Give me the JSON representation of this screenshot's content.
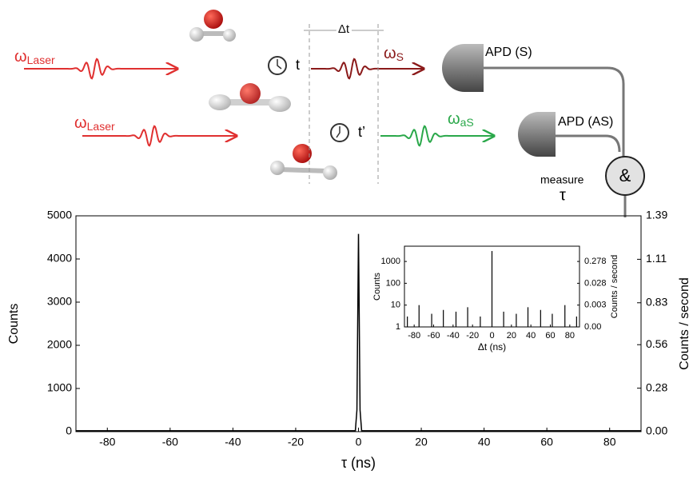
{
  "diagram": {
    "laser_1": {
      "symbol": "ω",
      "sub": "Laser"
    },
    "laser_2": {
      "symbol": "ω",
      "sub": "Laser"
    },
    "delta_t": "Δt",
    "time_1": "t",
    "time_2": "t’",
    "stokes": {
      "symbol": "ω",
      "sub": "S"
    },
    "anti_stokes": {
      "symbol": "ω",
      "sub": "aS"
    },
    "apd_s": "APD (S)",
    "apd_as": "APD (AS)",
    "coincidence": "&",
    "measure": "measure",
    "tau": "τ"
  },
  "chart_data": [
    {
      "type": "line",
      "xlabel": "τ (ns)",
      "ylabel": "Counts",
      "y2label": "Counts / second",
      "xlim": [
        -90,
        90
      ],
      "xticks": [
        -80,
        -60,
        -40,
        -20,
        0,
        20,
        40,
        60,
        80
      ],
      "ylim": [
        0,
        5000
      ],
      "yticks": [
        0,
        1000,
        2000,
        3000,
        4000,
        5000
      ],
      "y2lim": [
        0,
        1.39
      ],
      "y2ticks": [
        {
          "value": 0,
          "label": "0.00"
        },
        0.28,
        0.56,
        0.83,
        1.11,
        1.39
      ],
      "series": [
        {
          "name": "Counts",
          "color": "#000000",
          "x": [
            -90,
            -1,
            -0.5,
            0,
            0.5,
            1,
            90
          ],
          "values": [
            20,
            20,
            500,
            4580,
            500,
            20,
            20
          ]
        }
      ]
    },
    {
      "type": "bar",
      "xlabel": "Δt (ns)",
      "ylabel": "Counts",
      "y2label": "Counts / second",
      "log_y": true,
      "xlim": [
        -90,
        90
      ],
      "xticks": [
        -80,
        -60,
        -40,
        -20,
        0,
        20,
        40,
        60,
        80
      ],
      "ylim": [
        1,
        5000
      ],
      "yticks": [
        1,
        10,
        100,
        1000
      ],
      "y2lim": [
        0.000278,
        1.39
      ],
      "y2ticks": [
        {
          "value": 0.000278,
          "label": "0.00"
        },
        {
          "value": 0.00278,
          "label": "0.003"
        },
        {
          "value": 0.0278,
          "label": "0.028"
        },
        0.278
      ],
      "series": [
        {
          "name": "Counts",
          "color": "#000000",
          "x": [
            -87,
            -75,
            -62,
            -50,
            -37,
            -25,
            -12,
            0,
            12,
            25,
            37,
            50,
            62,
            75,
            87
          ],
          "values": [
            3,
            10,
            4,
            6,
            5,
            8,
            3,
            3000,
            5,
            4,
            8,
            6,
            4,
            10,
            3
          ]
        }
      ]
    }
  ]
}
